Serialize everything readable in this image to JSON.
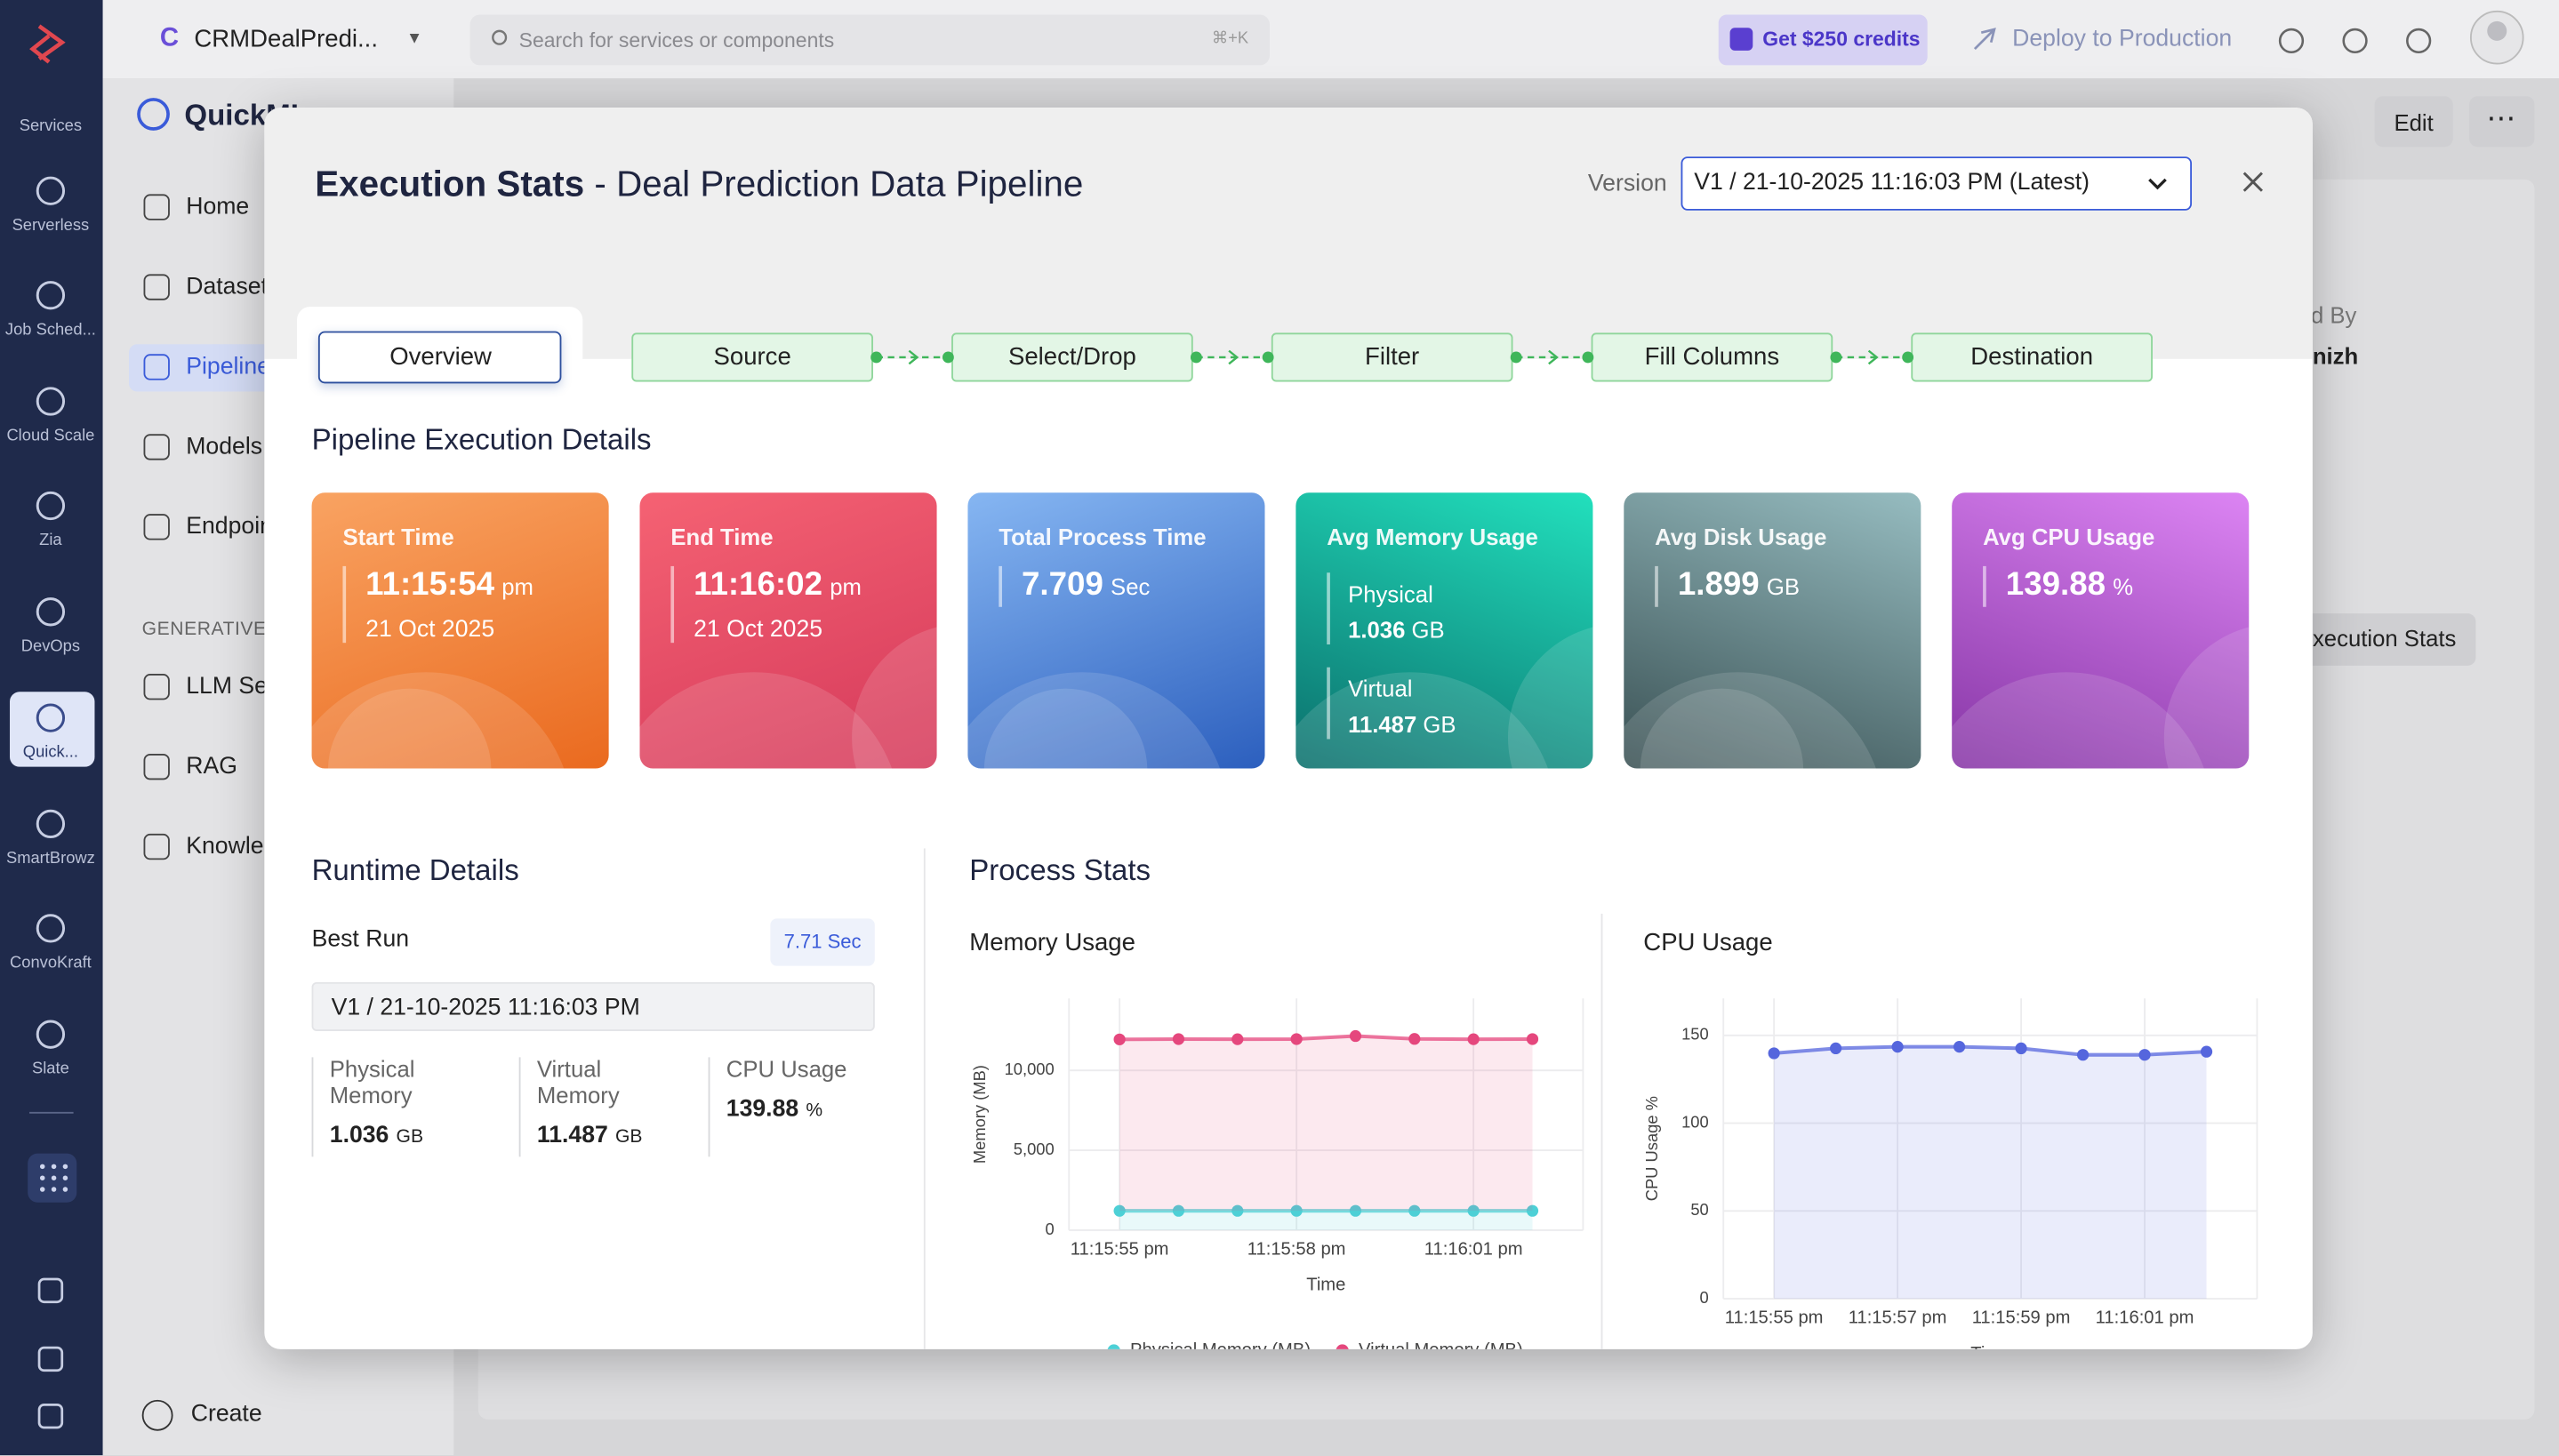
{
  "sidebar": {
    "items": [
      "Services",
      "Serverless",
      "Job Sched...",
      "Cloud Scale",
      "Zia",
      "DevOps",
      "Quick...",
      "SmartBrowz",
      "ConvoKraft",
      "Slate"
    ]
  },
  "topbar": {
    "project_initial": "C",
    "project": "CRMDealPredi...",
    "search_placeholder": "Search for services or components",
    "shortcut": "⌘+K",
    "credits": "Get $250 credits",
    "deploy": "Deploy to Production"
  },
  "nav": {
    "app": "QuickML",
    "items": [
      "Home",
      "Datasets",
      "Pipelines",
      "Models",
      "Endpoints"
    ],
    "section": "GENERATIVE AI",
    "gen_items": [
      "LLM Serving",
      "RAG",
      "Knowledge Base"
    ],
    "create": "Create"
  },
  "page": {
    "edit": "Edit",
    "created_by_label": "Created By",
    "created_by": "nizh",
    "execution_stats": "Execution Stats"
  },
  "modal": {
    "title": "Execution Stats",
    "subtitle": "- Deal Prediction Data Pipeline",
    "version_label": "Version",
    "version": "V1 / 21-10-2025 11:16:03 PM (Latest)",
    "tab": "Overview",
    "steps": [
      "Source",
      "Select/Drop",
      "Filter",
      "Fill Columns",
      "Destination"
    ],
    "details_title": "Pipeline Execution Details",
    "cards": [
      {
        "label": "Start Time",
        "value": "11:15:54",
        "unit": "pm",
        "sub": "21 Oct 2025"
      },
      {
        "label": "End Time",
        "value": "11:16:02",
        "unit": "pm",
        "sub": "21 Oct 2025"
      },
      {
        "label": "Total Process Time",
        "value": 7.709,
        "unit": "Sec"
      },
      {
        "label": "Avg Memory Usage",
        "rows": [
          {
            "label": "Physical",
            "value": 1.036,
            "unit": "GB"
          },
          {
            "label": "Virtual",
            "value": 11.487,
            "unit": "GB"
          }
        ]
      },
      {
        "label": "Avg Disk Usage",
        "value": 1.899,
        "unit": "GB"
      },
      {
        "label": "Avg CPU Usage",
        "value": 139.88,
        "unit": "%"
      }
    ],
    "runtime": {
      "title": "Runtime Details",
      "best_run": "Best Run",
      "best_time": "7.71 Sec",
      "version": "V1 / 21-10-2025 11:16:03 PM",
      "stats": [
        {
          "label": "Physical Memory",
          "value": 1.036,
          "unit": "GB"
        },
        {
          "label": "Virtual Memory",
          "value": 11.487,
          "unit": "GB"
        },
        {
          "label": "CPU Usage",
          "value": 139.88,
          "unit": "%"
        }
      ]
    },
    "process": {
      "title": "Process Stats",
      "charts": [
        {
          "type": "line",
          "title": "Memory Usage",
          "x_label": "Time",
          "y_label": "Memory (MB)",
          "x": [
            "11:15:55 pm",
            "11:15:56 pm",
            "11:15:57 pm",
            "11:15:58 pm",
            "11:15:59 pm",
            "11:16:00 pm",
            "11:16:01 pm",
            "11:16:02 pm"
          ],
          "xticks": [
            "11:15:55 pm",
            "11:15:58 pm",
            "11:16:01 pm"
          ],
          "ylim": [
            0,
            14500
          ],
          "yticks": [
            0,
            {
              "value": 5000,
              "label": "5,000"
            },
            {
              "value": 10000,
              "label": "10,000"
            }
          ],
          "grid": true,
          "series": [
            {
              "name": "Physical Memory (MB)",
              "color": "#4dd0d6",
              "values": [
                1210,
                1210,
                1210,
                1210,
                1210,
                1210,
                1210,
                1210
              ]
            },
            {
              "name": "Virtual Memory (MB)",
              "color": "#e5477d",
              "values": [
                11940,
                11960,
                11950,
                11960,
                12150,
                11970,
                11950,
                11960
              ]
            }
          ]
        },
        {
          "type": "line",
          "title": "CPU Usage",
          "x_label": "Time",
          "y_label": "CPU Usage %",
          "x": [
            "11:15:55 pm",
            "11:15:56 pm",
            "11:15:57 pm",
            "11:15:58 pm",
            "11:15:59 pm",
            "11:16:00 pm",
            "11:16:01 pm",
            "11:16:02 pm"
          ],
          "xticks": [
            "11:15:55 pm",
            "11:15:57 pm",
            "11:15:59 pm",
            "11:16:01 pm"
          ],
          "ylim": [
            0,
            171
          ],
          "yticks": [
            0,
            50,
            100,
            150
          ],
          "grid": true,
          "series": [
            {
              "color": "#5566dd",
              "values": [
                139.8,
                142.6,
                143.5,
                143.5,
                142.6,
                138.9,
                138.9,
                140.7
              ]
            }
          ]
        }
      ]
    }
  }
}
